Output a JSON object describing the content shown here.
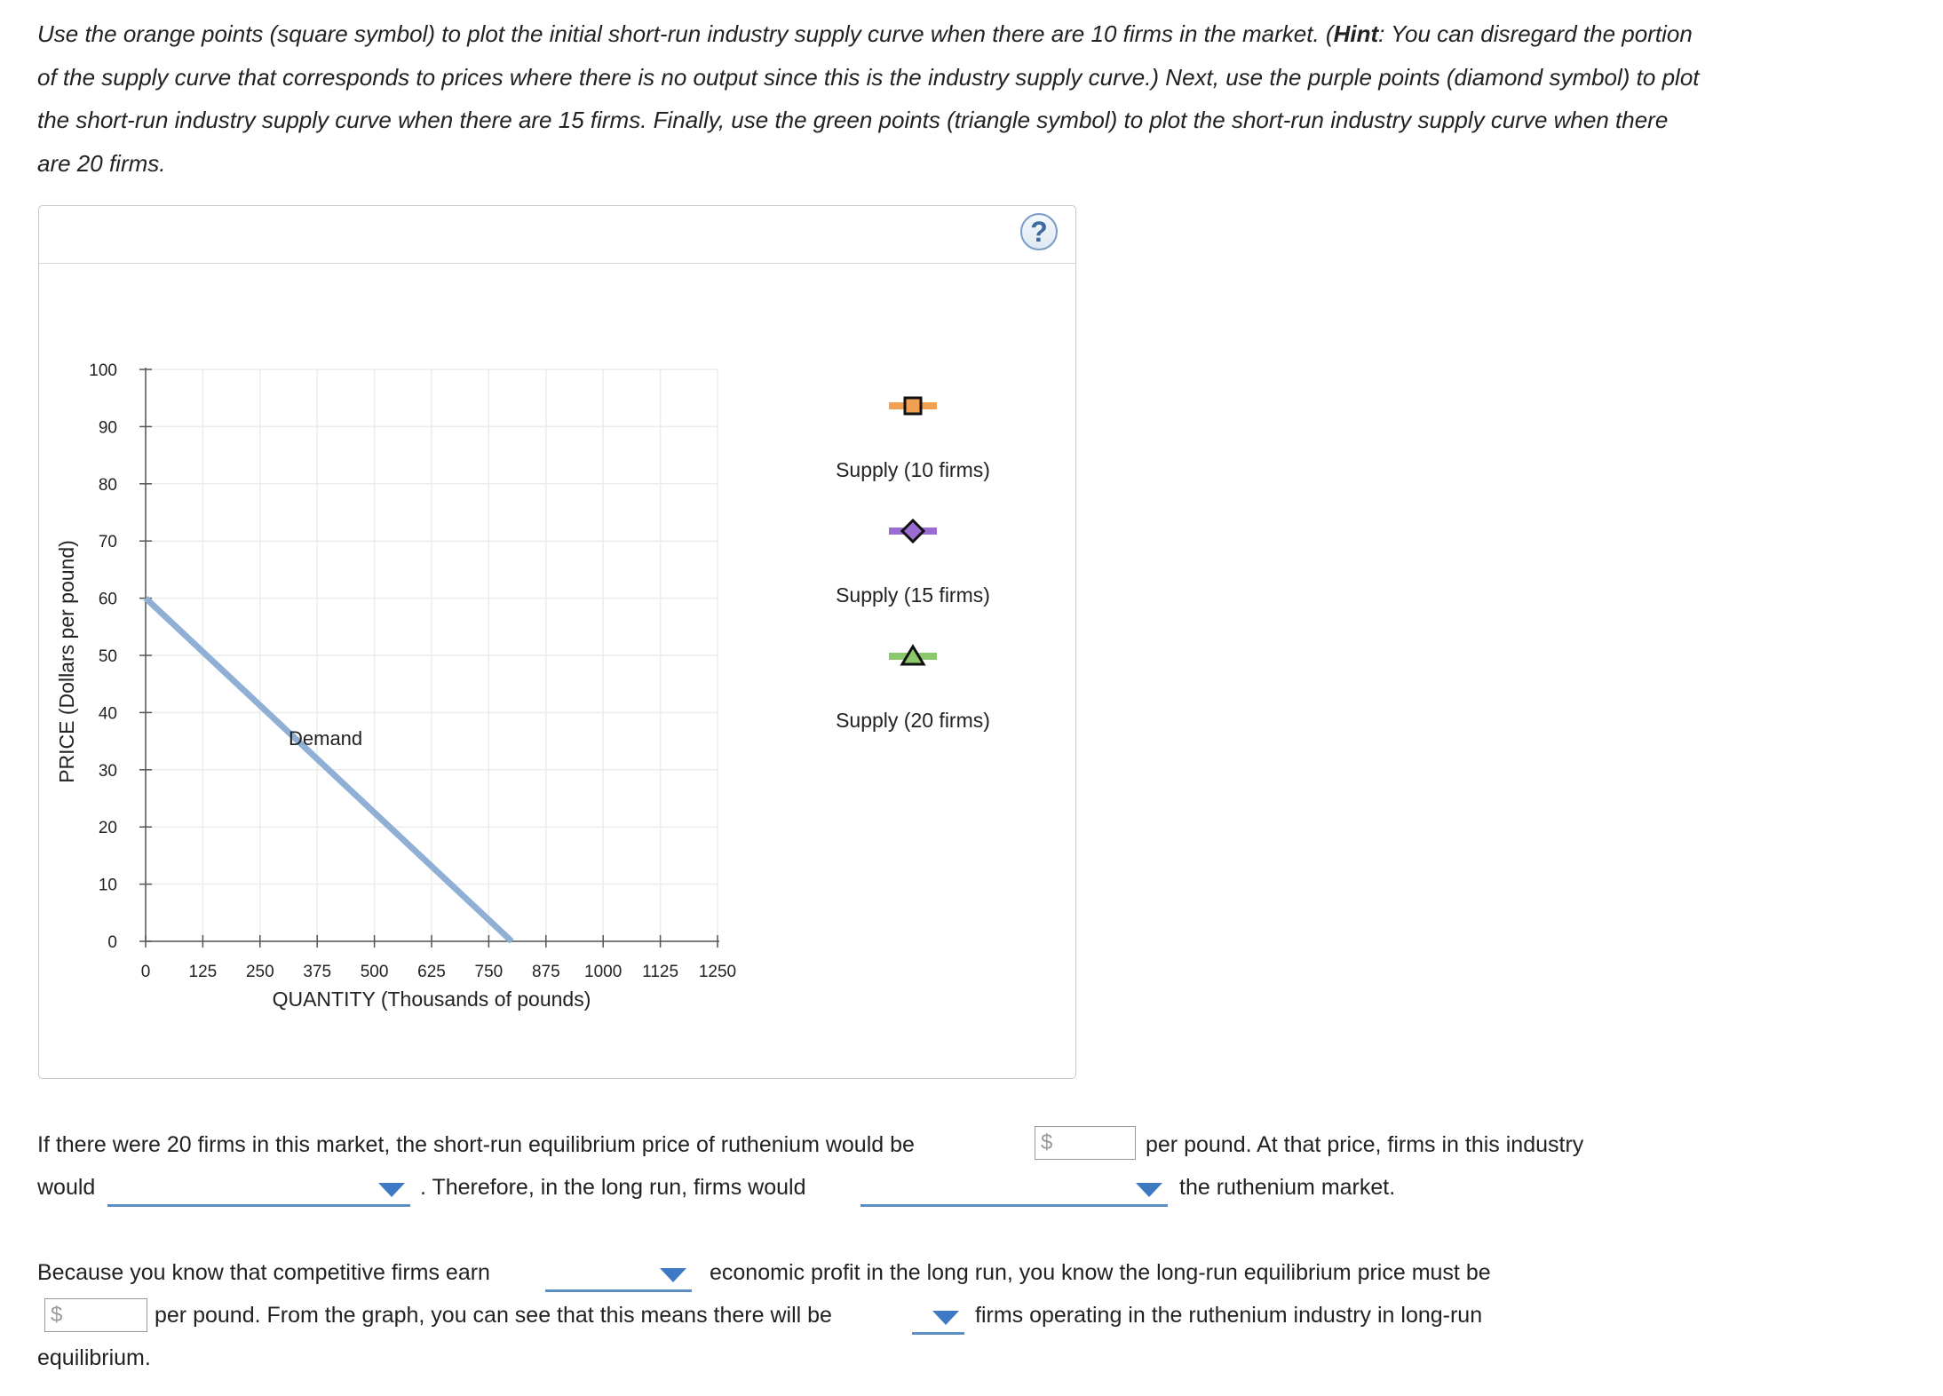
{
  "instructions": {
    "part1": "Use the orange points (square symbol) to plot the initial short-run industry supply curve when there are 10 firms in the market. (",
    "hint_label": "Hint",
    "part2": ": You can disregard the portion of the supply curve that corresponds to prices where there is no output since this is the industry supply curve.) Next, use the purple points (diamond symbol) to plot the short-run industry supply curve when there are 15 firms. Finally, use the green points (triangle symbol) to plot the short-run industry supply curve when there are 20 firms."
  },
  "help_icon": "?",
  "chart_data": {
    "type": "line",
    "xlabel": "QUANTITY (Thousands of pounds)",
    "ylabel": "PRICE (Dollars per pound)",
    "x_ticks": [
      0,
      125,
      250,
      375,
      500,
      625,
      750,
      875,
      1000,
      1125,
      1250
    ],
    "y_ticks": [
      0,
      10,
      20,
      30,
      40,
      50,
      60,
      70,
      80,
      90,
      100
    ],
    "xlim": [
      0,
      1250
    ],
    "ylim": [
      0,
      100
    ],
    "grid": true,
    "series": [
      {
        "name": "Demand",
        "color": "#8fb0d4",
        "points": [
          [
            0,
            60
          ],
          [
            800,
            0
          ]
        ]
      }
    ],
    "legend_tools": [
      {
        "label": "Supply (10 firms)",
        "symbol": "square",
        "color": "#f0a050"
      },
      {
        "label": "Supply (15 firms)",
        "symbol": "diamond",
        "color": "#9b6dd1"
      },
      {
        "label": "Supply (20 firms)",
        "symbol": "triangle",
        "color": "#8bc86a"
      }
    ]
  },
  "questions": {
    "q1_part1": "If there were 20 firms in this market, the short-run equilibrium price of ruthenium would be",
    "q1_part2": "per pound. At that price, firms in this industry",
    "q1_part3": "would",
    "q1_part4": ". Therefore, in the long run, firms would",
    "q1_part5": "the ruthenium market.",
    "q2_part1": "Because you know that competitive firms earn",
    "q2_part2": "economic profit in the long run, you know the long-run equilibrium price must be",
    "q2_part3": "per pound. From the graph, you can see that this means there will be",
    "q2_part4": "firms operating in the ruthenium industry in long-run",
    "q2_part5": "equilibrium.",
    "dollar_sign": "$"
  }
}
